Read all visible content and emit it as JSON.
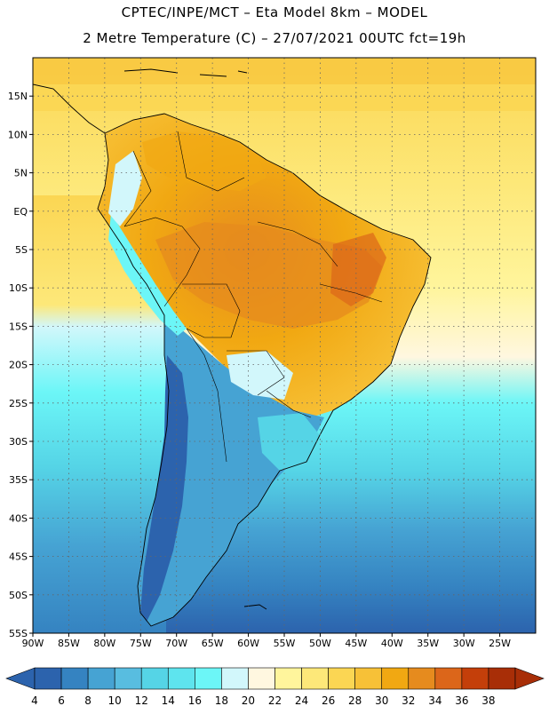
{
  "header": {
    "line1": "CPTEC/INPE/MCT –  Eta Model 8km – MODEL",
    "line2": "2 Metre Temperature (C) – 27/07/2021 00UTC fct=19h"
  },
  "map": {
    "lon_range": [
      -90,
      -20
    ],
    "lat_range": [
      -55,
      20
    ],
    "lon_ticks": [
      {
        "value": -90,
        "label": "90W"
      },
      {
        "value": -85,
        "label": "85W"
      },
      {
        "value": -80,
        "label": "80W"
      },
      {
        "value": -75,
        "label": "75W"
      },
      {
        "value": -70,
        "label": "70W"
      },
      {
        "value": -65,
        "label": "65W"
      },
      {
        "value": -60,
        "label": "60W"
      },
      {
        "value": -55,
        "label": "55W"
      },
      {
        "value": -50,
        "label": "50W"
      },
      {
        "value": -45,
        "label": "45W"
      },
      {
        "value": -40,
        "label": "40W"
      },
      {
        "value": -35,
        "label": "35W"
      },
      {
        "value": -30,
        "label": "30W"
      },
      {
        "value": -25,
        "label": "25W"
      }
    ],
    "lat_ticks": [
      {
        "value": 15,
        "label": "15N"
      },
      {
        "value": 10,
        "label": "10N"
      },
      {
        "value": 5,
        "label": "5N"
      },
      {
        "value": 0,
        "label": "EQ"
      },
      {
        "value": -5,
        "label": "5S"
      },
      {
        "value": -10,
        "label": "10S"
      },
      {
        "value": -15,
        "label": "15S"
      },
      {
        "value": -20,
        "label": "20S"
      },
      {
        "value": -25,
        "label": "25S"
      },
      {
        "value": -30,
        "label": "30S"
      },
      {
        "value": -35,
        "label": "35S"
      },
      {
        "value": -40,
        "label": "40S"
      },
      {
        "value": -45,
        "label": "45S"
      },
      {
        "value": -50,
        "label": "50S"
      },
      {
        "value": -55,
        "label": "55S"
      }
    ]
  },
  "colorbar": {
    "colors": [
      "#2c63ad",
      "#3583c1",
      "#46a3d3",
      "#58bde0",
      "#55d4e6",
      "#5ee4ee",
      "#6cf6f7",
      "#d2f7fb",
      "#fff7e0",
      "#fff59c",
      "#fde879",
      "#fbd653",
      "#f7c137",
      "#f1a812",
      "#e68b1e",
      "#dc661a",
      "#c43f0a",
      "#a82e07"
    ],
    "labels": [
      "4",
      "6",
      "8",
      "10",
      "12",
      "14",
      "16",
      "18",
      "20",
      "22",
      "24",
      "26",
      "28",
      "30",
      "32",
      "34",
      "36",
      "38"
    ]
  }
}
